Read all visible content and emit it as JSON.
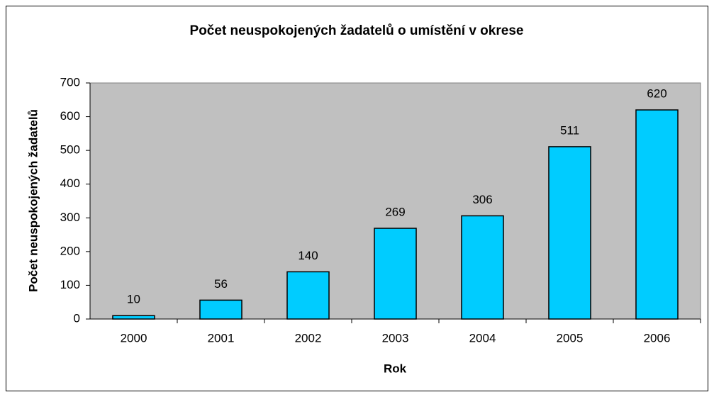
{
  "chart_data": {
    "type": "bar",
    "title": "Počet neuspokojených žadatelů o umístění v okrese",
    "x_label": "Rok",
    "y_label": "Počet neuspokojených žadatelů",
    "categories": [
      "2000",
      "2001",
      "2002",
      "2003",
      "2004",
      "2005",
      "2006"
    ],
    "values": [
      10,
      56,
      140,
      269,
      306,
      511,
      620
    ],
    "color": "#00ccff",
    "ylim": [
      0,
      700
    ],
    "yticks": [
      0,
      100,
      200,
      300,
      400,
      500,
      600,
      700
    ],
    "grid": false
  }
}
